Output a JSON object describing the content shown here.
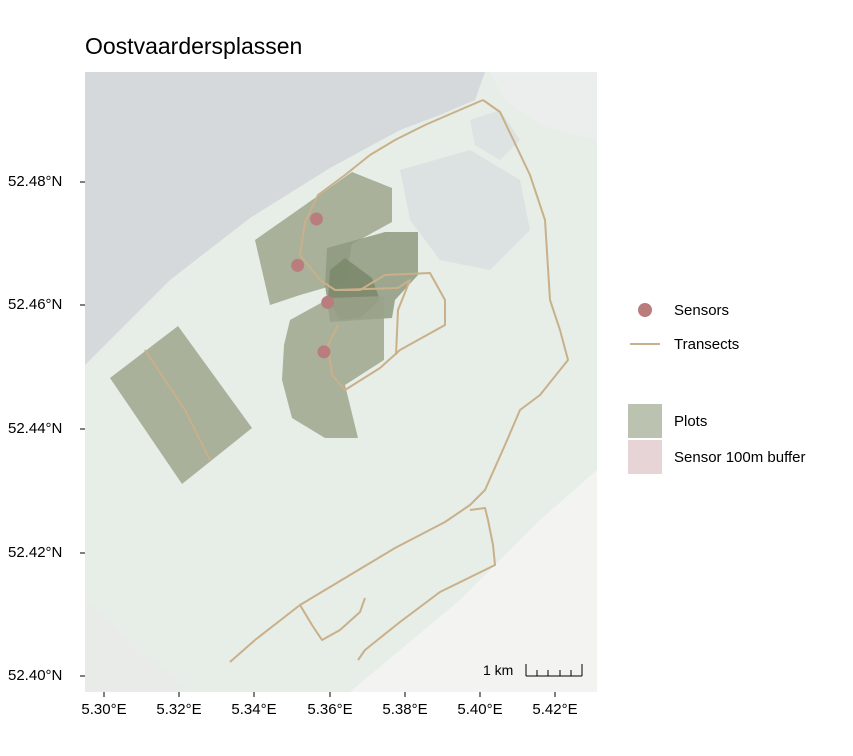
{
  "title": "Oostvaardersplassen",
  "axes": {
    "y_ticks": [
      "52.48°N",
      "52.46°N",
      "52.44°N",
      "52.42°N",
      "52.40°N"
    ],
    "x_ticks": [
      "5.30°E",
      "5.32°E",
      "5.34°E",
      "5.36°E",
      "5.38°E",
      "5.40°E",
      "5.42°E"
    ]
  },
  "legend": {
    "sensors": "Sensors",
    "transects": "Transects",
    "plots": "Plots",
    "buffer": "Sensor 100m buffer"
  },
  "scalebar": {
    "label": "1 km"
  },
  "colors": {
    "water": "#d5d9dc",
    "land": "#e6eee7",
    "urban": "#f3f4f2",
    "plots": "#9ba48a",
    "transect": "#c9b08a",
    "sensor": "#b97d7d",
    "buffer": "#e6d4d6"
  },
  "sensors": [
    {
      "lon": 5.3565,
      "lat": 52.474
    },
    {
      "lon": 5.3515,
      "lat": 52.4665
    },
    {
      "lon": 5.3595,
      "lat": 52.4605
    },
    {
      "lon": 5.3585,
      "lat": 52.4525
    }
  ]
}
